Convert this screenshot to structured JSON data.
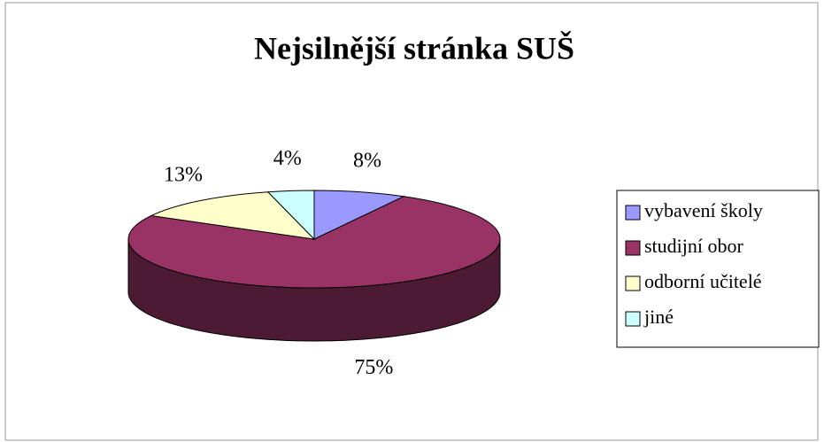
{
  "chart_data": {
    "type": "pie",
    "title": "Nejsilnější stránka SUŠ",
    "categories": [
      "vybavení školy",
      "studijní obor",
      "odborní učitelé",
      "jiné"
    ],
    "values": [
      8,
      75,
      13,
      4
    ],
    "value_labels": [
      "8%",
      "75%",
      "13%",
      "4%"
    ],
    "colors": [
      "#9999ff",
      "#993366",
      "#ffffcc",
      "#ccffff"
    ],
    "legend": "right"
  }
}
